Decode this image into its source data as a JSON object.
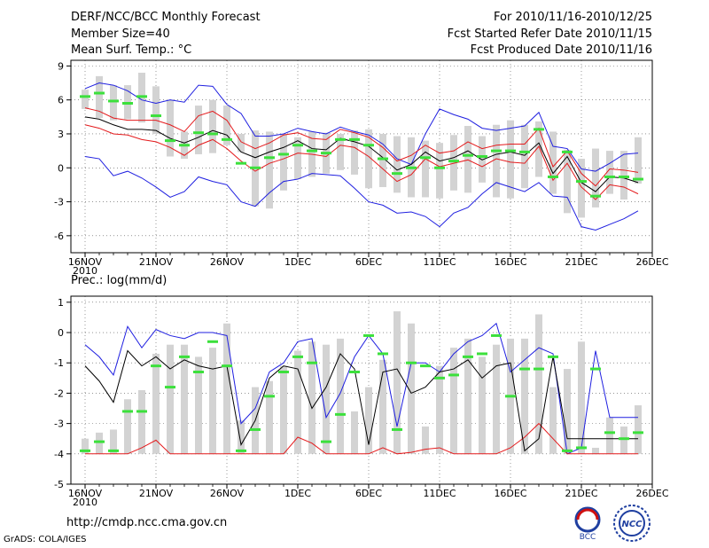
{
  "header": {
    "title": "DERF/NCC/BCC Monthly Forecast",
    "member_size": "Member Size=40",
    "variable": "Mean Surf. Temp.: °C",
    "forecast_period": "For 2010/11/16-2010/12/25",
    "started_refer": "Fcst Started Refer Date 2010/11/15",
    "produced": "Fcst Produced Date 2010/11/16"
  },
  "precip_label": "Prec.: log(mm/d)",
  "footer": {
    "url": "http://cmdp.ncc.cma.gov.cn",
    "credit": "GrADS: COLA/IGES",
    "logo_bcc": "BCC",
    "logo_ncc": "NCC"
  },
  "colors": {
    "bar": "#d3d3d3",
    "median": "#000000",
    "spread": "#e41a1c",
    "extreme": "#1f1fe0",
    "mean": "#3ce03c"
  },
  "chart_data": [
    {
      "type": "bar",
      "title": "Mean Surf. Temp.: °C",
      "x_tick_labels": [
        "16NOV",
        "21NOV",
        "26NOV",
        "1DEC",
        "6DEC",
        "11DEC",
        "16DEC",
        "21DEC",
        "26DEC"
      ],
      "x_year_label": "2010",
      "days": 40,
      "ylim": [
        -7.5,
        9.5
      ],
      "yticks": [
        -6,
        -3,
        0,
        3,
        6,
        9
      ],
      "series": [
        {
          "name": "range_low",
          "values": [
            5.2,
            4.4,
            4.2,
            4.3,
            4.0,
            3.0,
            1.0,
            0.8,
            1.2,
            1.3,
            2.0,
            1.4,
            -3.4,
            -3.6,
            -2.0,
            -1.0,
            -0.8,
            -0.5,
            -0.2,
            -0.6,
            -1.8,
            -1.7,
            -2.2,
            -2.6,
            -2.6,
            -2.7,
            -2.0,
            -2.2,
            -1.3,
            -2.6,
            -2.7,
            -1.8,
            -0.8,
            -2.3,
            -4.0,
            -4.4,
            -3.5,
            -2.3,
            -2.8,
            -1.4
          ]
        },
        {
          "name": "range_high",
          "values": [
            6.9,
            8.1,
            7.3,
            7.3,
            8.4,
            7.2,
            6.0,
            3.2,
            5.5,
            6.0,
            5.5,
            3.0,
            3.3,
            3.2,
            3.0,
            2.7,
            3.2,
            3.1,
            3.0,
            3.3,
            3.4,
            3.0,
            2.8,
            2.7,
            2.4,
            2.2,
            2.9,
            3.7,
            2.8,
            3.8,
            4.2,
            3.8,
            4.1,
            3.2,
            1.6,
            0.8,
            1.7,
            1.5,
            1.5,
            2.7
          ]
        },
        {
          "name": "ensemble_mean",
          "values": [
            6.3,
            6.6,
            5.9,
            5.7,
            6.3,
            4.6,
            2.4,
            2.0,
            3.1,
            3.0,
            2.5,
            0.4,
            0.0,
            0.9,
            1.2,
            2.0,
            1.5,
            1.3,
            2.5,
            2.5,
            2.0,
            0.8,
            -0.5,
            0.0,
            0.9,
            0.0,
            0.6,
            1.1,
            1.0,
            1.5,
            1.5,
            1.4,
            3.4,
            -0.8,
            1.4,
            -1.2,
            -2.5,
            -0.8,
            -0.8,
            -1.0
          ]
        },
        {
          "name": "median",
          "values": [
            4.5,
            4.3,
            3.8,
            3.4,
            3.4,
            3.3,
            2.6,
            2.2,
            2.7,
            3.3,
            2.9,
            1.4,
            0.9,
            1.4,
            1.8,
            2.4,
            1.7,
            1.6,
            2.6,
            2.3,
            1.9,
            0.9,
            -0.2,
            0.3,
            1.4,
            0.6,
            0.9,
            1.5,
            0.7,
            1.2,
            1.4,
            1.1,
            2.2,
            -0.5,
            1.0,
            -1.3,
            -2.1,
            -0.8,
            -0.9,
            -1.3
          ]
        },
        {
          "name": "upper_spread",
          "values": [
            5.3,
            5.0,
            4.4,
            4.2,
            4.2,
            4.2,
            3.8,
            3.2,
            4.6,
            5.0,
            4.2,
            2.3,
            1.7,
            2.2,
            2.9,
            3.1,
            2.6,
            2.5,
            3.4,
            3.1,
            2.7,
            1.8,
            0.6,
            1.1,
            2.0,
            1.3,
            1.5,
            2.3,
            1.7,
            2.0,
            2.1,
            2.1,
            3.5,
            0.1,
            1.5,
            -0.5,
            -1.6,
            -0.1,
            -0.2,
            -0.4
          ]
        },
        {
          "name": "lower_spread",
          "values": [
            3.8,
            3.5,
            3.0,
            2.9,
            2.5,
            2.3,
            1.8,
            1.1,
            2.0,
            2.5,
            1.7,
            0.6,
            -0.3,
            0.4,
            0.8,
            1.3,
            1.2,
            1.0,
            2.0,
            1.8,
            1.0,
            -0.1,
            -1.2,
            -0.6,
            0.8,
            0.1,
            0.4,
            0.7,
            0.1,
            0.8,
            0.5,
            0.4,
            1.9,
            -1.1,
            0.4,
            -1.7,
            -2.8,
            -1.5,
            -1.7,
            -2.3
          ]
        },
        {
          "name": "maximum",
          "values": [
            7.0,
            7.5,
            7.3,
            6.8,
            6.0,
            5.7,
            6.0,
            5.8,
            7.3,
            7.2,
            5.6,
            4.8,
            2.8,
            2.8,
            3.0,
            3.5,
            3.2,
            3.0,
            3.6,
            3.2,
            2.9,
            2.1,
            0.8,
            0.3,
            3.0,
            5.2,
            4.7,
            4.3,
            3.5,
            3.3,
            3.5,
            3.7,
            4.9,
            1.9,
            1.7,
            -0.1,
            -0.3,
            0.4,
            1.2,
            1.3
          ]
        },
        {
          "name": "minimum",
          "values": [
            1.0,
            0.8,
            -0.7,
            -0.3,
            -0.9,
            -1.7,
            -2.6,
            -2.1,
            -0.8,
            -1.2,
            -1.5,
            -3.0,
            -3.4,
            -2.2,
            -1.2,
            -1.0,
            -0.5,
            -0.6,
            -0.7,
            -1.8,
            -3.0,
            -3.3,
            -4.0,
            -3.9,
            -4.3,
            -5.2,
            -4.0,
            -3.5,
            -2.3,
            -1.3,
            -1.7,
            -2.1,
            -1.3,
            -2.5,
            -2.6,
            -5.2,
            -5.5,
            -5.0,
            -4.5,
            -3.8
          ]
        }
      ]
    },
    {
      "type": "bar",
      "title": "Prec.: log(mm/d)",
      "x_tick_labels": [
        "16NOV",
        "21NOV",
        "26NOV",
        "1DEC",
        "6DEC",
        "11DEC",
        "16DEC",
        "21DEC",
        "26DEC"
      ],
      "x_year_label": "2010",
      "days": 40,
      "ylim": [
        -5,
        1.2
      ],
      "yticks": [
        -5,
        -4,
        -3,
        -2,
        -1,
        0,
        1
      ],
      "series": [
        {
          "name": "range_low",
          "values": [
            -4,
            -4,
            -4,
            -4,
            -4,
            -4,
            -4,
            -4,
            -4,
            -4,
            -4,
            -4,
            -4,
            -4,
            -4,
            -4,
            -4,
            -4,
            -4,
            -4,
            -4,
            -4,
            -4,
            -4,
            -4,
            -4,
            -4,
            -4,
            -4,
            -4,
            -4,
            -4,
            -4,
            -4,
            -4,
            -4,
            -4,
            -4,
            -4,
            -4
          ]
        },
        {
          "name": "range_high",
          "values": [
            -3.5,
            -3.3,
            -3.2,
            -2.2,
            -1.9,
            -0.7,
            -0.4,
            -0.4,
            -0.8,
            -0.5,
            0.3,
            -2.9,
            -1.8,
            -1.6,
            -1.1,
            -0.6,
            -0.3,
            -0.4,
            -0.2,
            -2.6,
            -1.8,
            -0.9,
            0.7,
            0.3,
            -3.1,
            -1.1,
            -0.5,
            -0.2,
            -0.8,
            -0.4,
            -0.2,
            -0.2,
            0.6,
            -1.8,
            -1.2,
            -0.3,
            -3.8,
            -2.8,
            -3.1,
            -2.4
          ]
        },
        {
          "name": "ensemble_mean",
          "values": [
            -3.9,
            -3.6,
            -3.9,
            -2.6,
            -2.6,
            -1.1,
            -1.8,
            -0.8,
            -1.3,
            -0.3,
            -1.1,
            -3.9,
            -3.2,
            -2.1,
            -1.3,
            -0.8,
            -1.0,
            -3.6,
            -2.7,
            -1.3,
            -0.1,
            -0.7,
            -3.2,
            -1.0,
            -1.1,
            -1.5,
            -1.4,
            -0.8,
            -0.7,
            -0.1,
            -2.1,
            -1.2,
            -1.2,
            -0.8,
            -3.9,
            -3.8,
            -1.2,
            -3.3,
            -3.5,
            -3.3
          ]
        },
        {
          "name": "median",
          "values": [
            -1.1,
            -1.6,
            -2.3,
            -0.6,
            -1.1,
            -0.8,
            -1.2,
            -0.9,
            -1.1,
            -1.2,
            -1.1,
            -3.7,
            -2.9,
            -1.5,
            -1.1,
            -1.2,
            -2.5,
            -1.8,
            -0.7,
            -1.2,
            -3.7,
            -1.3,
            -1.2,
            -2.0,
            -1.8,
            -1.3,
            -1.2,
            -0.9,
            -1.5,
            -1.1,
            -1.0,
            -3.9,
            -3.5,
            -0.8,
            -3.5,
            -3.5,
            -3.5,
            -3.5,
            -3.5,
            -3.5
          ]
        },
        {
          "name": "maximum",
          "values": [
            -0.4,
            -0.8,
            -1.4,
            0.2,
            -0.5,
            0.1,
            -0.1,
            -0.2,
            0.0,
            0.0,
            -0.1,
            -3.0,
            -2.5,
            -1.3,
            -1.0,
            -0.3,
            -0.2,
            -2.8,
            -2.0,
            -0.8,
            -0.1,
            -0.7,
            -3.1,
            -1.0,
            -1.0,
            -1.3,
            -0.7,
            -0.3,
            -0.1,
            0.3,
            -1.3,
            -0.9,
            -0.5,
            -0.7,
            -4.0,
            -3.8,
            -0.6,
            -2.8,
            -2.8,
            -2.8
          ]
        },
        {
          "name": "minimum",
          "values": [
            -4,
            -4,
            -4,
            -4,
            -3.8,
            -3.55,
            -4,
            -4,
            -4,
            -4,
            -4,
            -4,
            -4,
            -4,
            -4,
            -3.45,
            -3.65,
            -4,
            -4,
            -4,
            -4,
            -3.8,
            -4,
            -3.95,
            -3.85,
            -3.8,
            -4,
            -4,
            -4,
            -4,
            -3.8,
            -3.45,
            -3.0,
            -3.5,
            -4,
            -4,
            -4,
            -4,
            -4,
            -4
          ]
        }
      ]
    }
  ]
}
